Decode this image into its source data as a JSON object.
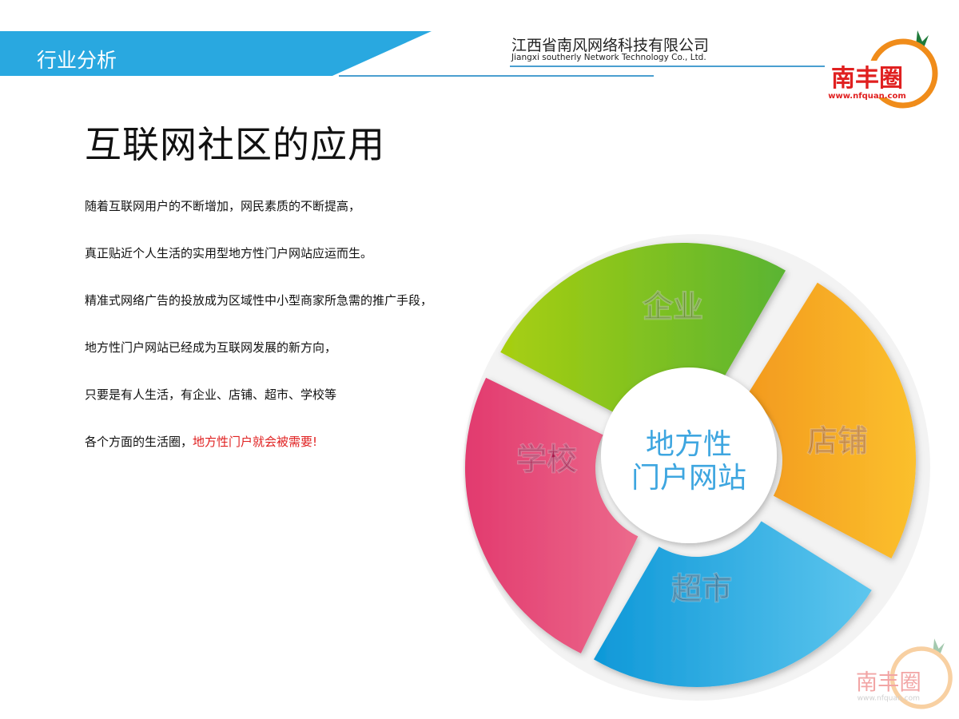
{
  "header": {
    "section_title": "行业分析",
    "company_cn": "江西省南风网络科技有限公司",
    "company_en": "Jiangxi southerly Network Technology Co., Ltd."
  },
  "logo": {
    "text": "南丰圈",
    "url": "www.nfquan.com"
  },
  "page_title": "互联网社区的应用",
  "paragraphs": [
    "随着互联网用户的不断增加，网民素质的不断提高，",
    "真正贴近个人生活的实用型地方性门户网站应运而生。",
    "精准式网络广告的投放成为区域性中小型商家所急需的推广手段，",
    "地方性门户网站已经成为互联网发展的新方向，",
    "只要是有人生活，有企业、店铺、超市、学校等"
  ],
  "last_paragraph": {
    "normal": "各个方面的生活圈，",
    "highlight": "地方性门户就会被需要!"
  },
  "diagram": {
    "center": {
      "line1": "地方性",
      "line2": "门户网站"
    },
    "segments": [
      {
        "label": "企业",
        "colors": [
          "#a8cf10",
          "#5ab432"
        ],
        "text_color": "#5a8a1a"
      },
      {
        "label": "店铺",
        "colors": [
          "#f39a1e",
          "#fbc02d"
        ],
        "text_color": "#b86a10"
      },
      {
        "label": "超市",
        "colors": [
          "#0e98d8",
          "#5ec6ee"
        ],
        "text_color": "#1a6a96"
      },
      {
        "label": "学校",
        "colors": [
          "#e23a6e",
          "#ec6a8c"
        ],
        "text_color": "#a8184a"
      }
    ]
  },
  "colors": {
    "brand_blue": "#29a8e0",
    "highlight_red": "#e02020",
    "center_text": "#3ea6e0"
  }
}
